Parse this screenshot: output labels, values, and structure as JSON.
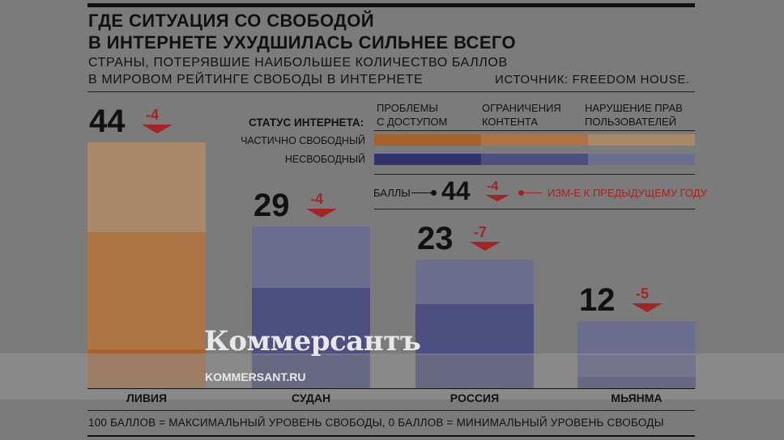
{
  "header": {
    "title_line1": "ГДЕ СИТУАЦИЯ СО СВОБОДОЙ",
    "title_line2": "В ИНТЕРНЕТЕ УХУДШИЛАСЬ СИЛЬНЕЕ ВСЕГО",
    "subtitle_line1": "СТРАНЫ, ПОТЕРЯВШИЕ НАИБОЛЬШЕЕ КОЛИЧЕСТВО БАЛЛОВ",
    "subtitle_line2": "В МИРОВОМ РЕЙТИНГЕ СВОБОДЫ В ИНТЕРНЕТЕ",
    "source": "ИСТОЧНИК: FREEDOM HOUSE."
  },
  "legend": {
    "status_title": "СТАТУС ИНТЕРНЕТА:",
    "col1_line1": "ПРОБЛЕМЫ",
    "col1_line2": "С ДОСТУПОМ",
    "col2_line1": "ОГРАНИЧЕНИЯ",
    "col2_line2": "КОНТЕНТА",
    "col3_line1": "НАРУШЕНИЕ ПРАВ",
    "col3_line2": "ПОЛЬЗОВАТЕЛЕЙ",
    "row1": "ЧАСТИЧНО СВОБОДНЫЙ",
    "row2": "НЕСВОБОДНЫЙ",
    "key_score_label": "БАЛЛЫ",
    "key_score_value": "44",
    "key_change_value": "-4",
    "key_change_label": "ИЗМ-Е К ПРЕДЫДУЩЕМУ ГОДУ"
  },
  "colors": {
    "partly_free": [
      "#a7612a",
      "#ad7446",
      "#a88868"
    ],
    "not_free": [
      "#1e1f4e",
      "#30336d",
      "#4d4f80",
      "#6c6e90"
    ],
    "accent_red": "#a32424"
  },
  "chart_data": {
    "type": "bar",
    "stacked": true,
    "categories": [
      "ЛИВИЯ",
      "СУДАН",
      "РОССИЯ",
      "МЬЯНМА"
    ],
    "totals": [
      44,
      29,
      23,
      12
    ],
    "change_labels": [
      "-4",
      "-4",
      "-7",
      "-5"
    ],
    "status": [
      "partly_free",
      "not_free",
      "not_free",
      "not_free"
    ],
    "series": [
      {
        "name": "ПРОБЛЕМЫ С ДОСТУПОМ",
        "values": [
          7,
          6,
          6,
          2
        ]
      },
      {
        "name": "ОГРАНИЧЕНИЯ КОНТЕНТА",
        "values": [
          21,
          12,
          9,
          4
        ]
      },
      {
        "name": "НАРУШЕНИЕ ПРАВ ПОЛЬЗОВАТЕЛЕЙ",
        "values": [
          16,
          11,
          8,
          6
        ]
      }
    ],
    "ylim": [
      0,
      45
    ]
  },
  "footer": {
    "note": "100 БАЛЛОВ = МАКСИМАЛЬНЫЙ УРОВЕНЬ СВОБОДЫ, 0 БАЛЛОВ = МИНИМАЛЬНЫЙ УРОВЕНЬ СВОБОДЫ"
  },
  "watermark": {
    "logo": "Коммерсантъ",
    "url": "KOMMERSANT.RU"
  }
}
